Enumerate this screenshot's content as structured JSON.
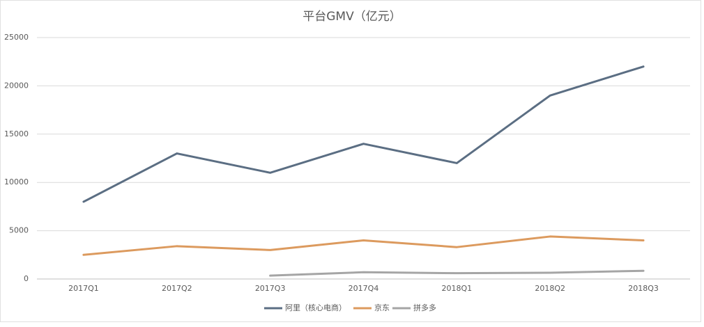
{
  "chart_data": {
    "type": "line",
    "title": "平台GMV（亿元）",
    "categories": [
      "2017Q1",
      "2017Q2",
      "2017Q3",
      "2017Q4",
      "2018Q1",
      "2018Q2",
      "2018Q3"
    ],
    "series": [
      {
        "name": "阿里（核心电商）",
        "color": "#5b6e83",
        "values": [
          8000,
          13000,
          11000,
          14000,
          12000,
          19000,
          22000
        ]
      },
      {
        "name": "京东",
        "color": "#dc9a5e",
        "values": [
          2500,
          3400,
          3000,
          4000,
          3300,
          4400,
          4000
        ]
      },
      {
        "name": "拼多多",
        "color": "#a5a5a5",
        "values": [
          null,
          null,
          350,
          700,
          600,
          650,
          850
        ]
      }
    ],
    "ylim": [
      0,
      25000
    ],
    "yticks": [
      0,
      5000,
      10000,
      15000,
      20000,
      25000
    ],
    "grid": true,
    "legend": "bottom"
  }
}
